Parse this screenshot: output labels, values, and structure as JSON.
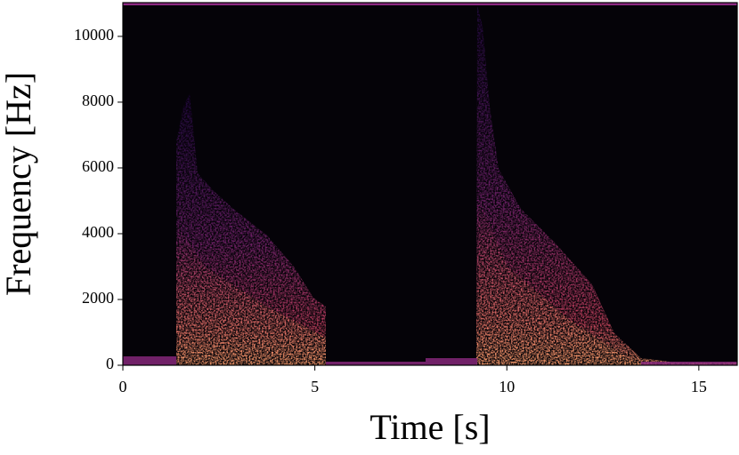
{
  "chart_data": {
    "type": "spectrogram",
    "xlabel": "Time [s]",
    "ylabel": "Frequency [Hz]",
    "xlim": [
      0,
      16
    ],
    "ylim": [
      0,
      11025
    ],
    "xticks": [
      0,
      5,
      10,
      15
    ],
    "yticks": [
      0,
      2000,
      4000,
      6000,
      8000,
      10000
    ],
    "colormap": "magma"
  }
}
